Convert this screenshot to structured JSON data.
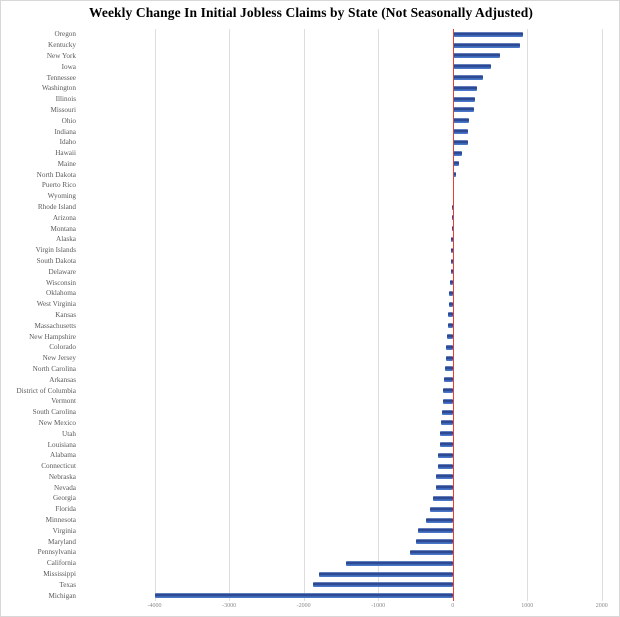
{
  "title": "Weekly Change In Initial Jobless Claims by State (Not Seasonally Adjusted)",
  "chart_data": {
    "type": "bar",
    "orientation": "horizontal",
    "title": "Weekly Change In Initial Jobless Claims by State (Not Seasonally Adjusted)",
    "xlabel": "",
    "ylabel": "",
    "xlim": [
      -5000,
      2150
    ],
    "x_ticks": [
      -4000,
      -3000,
      -2000,
      -1000,
      0,
      1000,
      2000
    ],
    "x_tick_labels": [
      "-4000",
      "-3000",
      "-2000",
      "-1000",
      "0",
      "1000",
      "2000"
    ],
    "grid": "vertical-on",
    "legend": "none",
    "zero_reference_line": true,
    "categories": [
      "Oregon",
      "Kentucky",
      "New York",
      "Iowa",
      "Tennessee",
      "Washington",
      "Illinois",
      "Missouri",
      "Ohio",
      "Indiana",
      "Idaho",
      "Hawaii",
      "Maine",
      "North Dakota",
      "Puerto Rico",
      "Wyoming",
      "Rhode Island",
      "Arizona",
      "Montana",
      "Alaska",
      "Virgin Islands",
      "South Dakota",
      "Delaware",
      "Wisconsin",
      "Oklahoma",
      "West Virginia",
      "Kansas",
      "Massachusetts",
      "New Hampshire",
      "Colorado",
      "New Jersey",
      "North Carolina",
      "Arkansas",
      "District of Columbia",
      "Vermont",
      "South Carolina",
      "New Mexico",
      "Utah",
      "Louisiana",
      "Alabama",
      "Connecticut",
      "Nebraska",
      "Nevada",
      "Georgia",
      "Florida",
      "Minnesota",
      "Virginia",
      "Maryland",
      "Pennsylvania",
      "California",
      "Mississippi",
      "Texas",
      "Michigan"
    ],
    "values": [
      950,
      900,
      630,
      520,
      410,
      320,
      300,
      290,
      220,
      210,
      200,
      130,
      80,
      50,
      15,
      5,
      -5,
      -10,
      -15,
      -20,
      -22,
      -25,
      -30,
      -40,
      -45,
      -55,
      -60,
      -70,
      -75,
      -85,
      -95,
      -105,
      -115,
      -125,
      -135,
      -145,
      -155,
      -165,
      -175,
      -195,
      -200,
      -225,
      -230,
      -270,
      -300,
      -355,
      -460,
      -500,
      -570,
      -1430,
      -1800,
      -1880,
      -3990
    ],
    "colors": {
      "bar": "#4472c4",
      "bar_dark_band": "#2a448d",
      "zero_line": "#ef3b30",
      "gridline": "#dedede",
      "category_label": "#5a5a5a",
      "tick_label": "#8a8a8a",
      "title": "#000000",
      "background": "#ffffff"
    }
  }
}
